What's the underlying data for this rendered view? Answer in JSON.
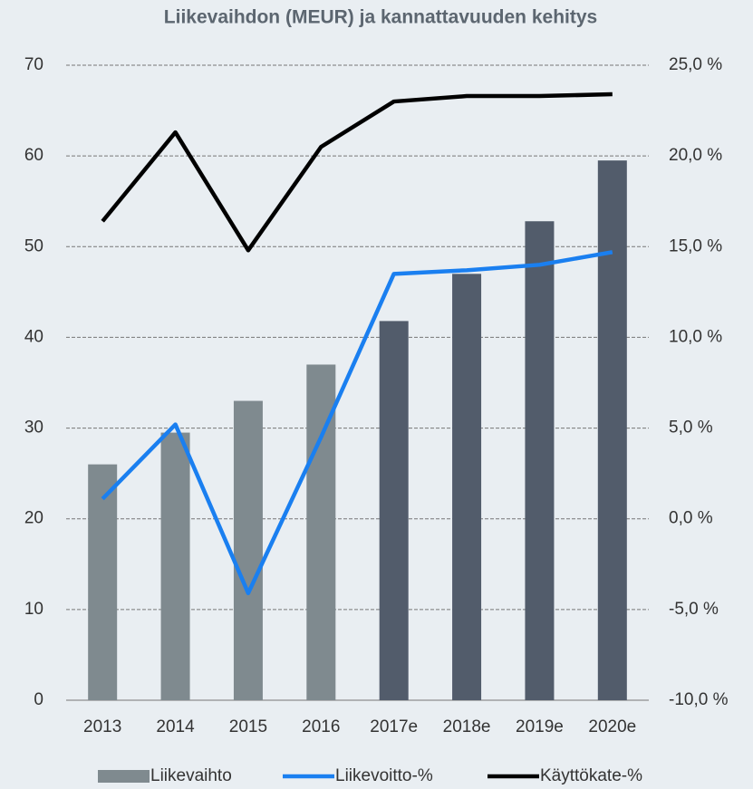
{
  "chart_data": {
    "type": "bar",
    "title": "Liikevaihdon (MEUR) ja kannattavuuden kehitys",
    "categories": [
      "2013",
      "2014",
      "2015",
      "2016",
      "2017e",
      "2018e",
      "2019e",
      "2020e"
    ],
    "series": [
      {
        "name": "Liikevaihto",
        "type": "bar",
        "color": "#7f8a8f",
        "colors": [
          "#7f8a8f",
          "#7f8a8f",
          "#7f8a8f",
          "#7f8a8f",
          "#525c6b",
          "#525c6b",
          "#525c6b",
          "#525c6b"
        ],
        "values": [
          26,
          29.5,
          33,
          37,
          41.8,
          47,
          52.8,
          59.5
        ]
      },
      {
        "name": "Liikevoitto-%",
        "type": "line",
        "axis": "y2",
        "color": "#1a7ff0",
        "values": [
          1.1,
          5.2,
          -4.1,
          4.5,
          13.5,
          13.7,
          14.0,
          14.7
        ]
      },
      {
        "name": "Käyttökate-%",
        "type": "line",
        "axis": "y2",
        "color": "#000000",
        "values": [
          16.4,
          21.3,
          14.8,
          20.5,
          23.0,
          23.3,
          23.3,
          23.4
        ]
      }
    ],
    "ylim": [
      0,
      70
    ],
    "yticks": [
      0,
      10,
      20,
      30,
      40,
      50,
      60,
      70
    ],
    "y2lim": [
      -10,
      25
    ],
    "y2ticks": [
      {
        "value": -10,
        "label": "-10,0 %"
      },
      {
        "value": -5,
        "label": "-5,0 %"
      },
      {
        "value": 0,
        "label": "0,0 %"
      },
      {
        "value": 5,
        "label": "5,0 %"
      },
      {
        "value": 10,
        "label": "10,0 %"
      },
      {
        "value": 15,
        "label": "15,0 %"
      },
      {
        "value": 20,
        "label": "20,0 %"
      },
      {
        "value": 25,
        "label": "25,0 %"
      }
    ],
    "grid": true,
    "legend": "bottom"
  }
}
